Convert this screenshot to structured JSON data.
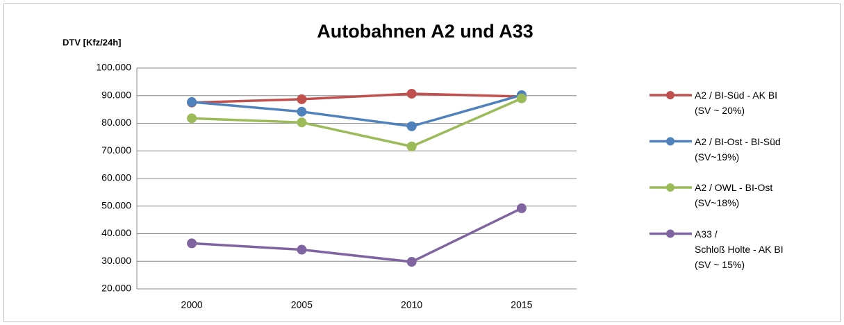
{
  "chart_data": {
    "type": "line",
    "title": "Autobahnen A2 und A33",
    "y_label": "DTV [Kfz/24h]",
    "categories": [
      "2000",
      "2005",
      "2010",
      "2015"
    ],
    "series": [
      {
        "name": "A2 / BI-Süd - AK BI\n(SV ~ 20%)",
        "color": "#c0504d",
        "values": [
          87500,
          88700,
          90700,
          89700
        ]
      },
      {
        "name": "A2 / BI-Ost - BI-Süd\n(SV~19%)",
        "color": "#4f81bd",
        "values": [
          87700,
          84200,
          78900,
          90200
        ]
      },
      {
        "name": "A2 / OWL - BI-Ost\n(SV~18%)",
        "color": "#9bbb59",
        "values": [
          81800,
          80300,
          71600,
          89000
        ]
      },
      {
        "name": "A33 /\nSchloß Holte - AK BI\n(SV ~ 15%)",
        "color": "#8064a2",
        "values": [
          36500,
          34200,
          29800,
          49200
        ]
      }
    ],
    "ylim": [
      20000,
      100000
    ],
    "yticks": [
      {
        "value": 20000,
        "label": "20.000"
      },
      {
        "value": 30000,
        "label": "30.000"
      },
      {
        "value": 40000,
        "label": "40.000"
      },
      {
        "value": 50000,
        "label": "50.000"
      },
      {
        "value": 60000,
        "label": "60.000"
      },
      {
        "value": 70000,
        "label": "70.000"
      },
      {
        "value": 80000,
        "label": "80.000"
      },
      {
        "value": 90000,
        "label": "90.000"
      },
      {
        "value": 100000,
        "label": "100.000"
      }
    ],
    "grid": true,
    "legend": "right"
  }
}
